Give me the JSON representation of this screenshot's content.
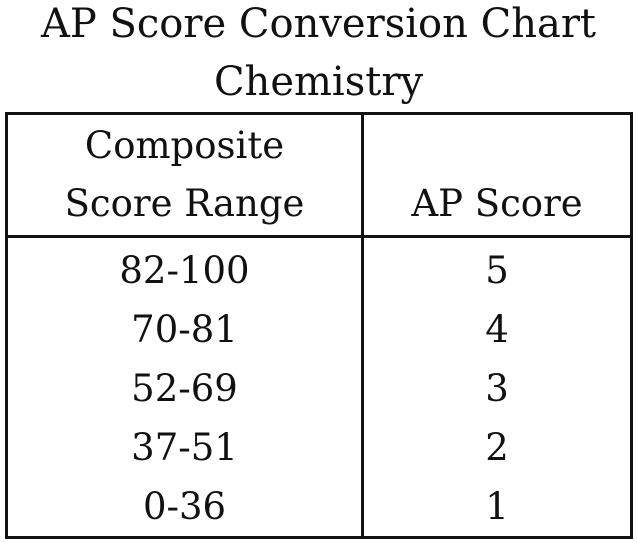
{
  "header": {
    "title": "AP Score Conversion Chart",
    "subtitle": "Chemistry"
  },
  "table": {
    "columns": [
      [
        "Composite",
        "Score Range"
      ],
      [
        "AP Score"
      ]
    ],
    "rows": [
      [
        "82-100",
        5
      ],
      [
        "70-81",
        4
      ],
      [
        "52-69",
        3
      ],
      [
        "37-51",
        2
      ],
      [
        "0-36",
        1
      ]
    ]
  }
}
